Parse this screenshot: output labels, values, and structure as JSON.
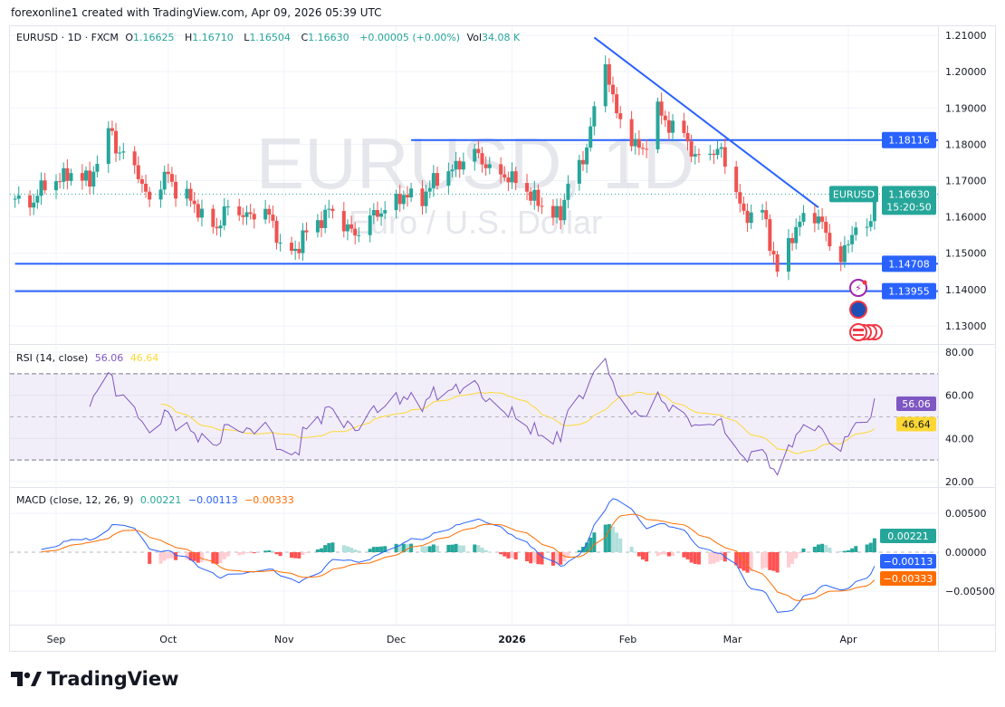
{
  "credit": "forexonline1 created with TradingView.com, Apr 09, 2026 05:39 UTC",
  "header": {
    "symbol": "EURUSD · 1D · FXCM",
    "o_label": "O",
    "o": "1.16625",
    "h_label": "H",
    "h": "1.16710",
    "l_label": "L",
    "l": "1.16504",
    "c_label": "C",
    "c": "1.16630",
    "change": "+0.00005 (+0.00%)",
    "vol_label": "Vol",
    "vol": "34.08 K"
  },
  "watermark": {
    "title": "EURUSD, 1D",
    "subtitle": "Euro / U.S. Dollar"
  },
  "brand": "TradingView",
  "colors": {
    "up": "#26a69a",
    "down": "#ef5350",
    "line": "#2962ff",
    "rsi": "#7e57c2",
    "rsi_ma": "#fdd835",
    "macd": "#2962ff",
    "signal": "#ff6d00",
    "grid": "#f0f3fa"
  },
  "chart_data": [
    {
      "type": "candlestick",
      "symbol": "EURUSD",
      "ylim": [
        1.125,
        1.2125
      ],
      "yticks": [
        "1.21000",
        "1.20000",
        "1.19000",
        "1.18000",
        "1.17000",
        "1.16000",
        "1.15000",
        "1.14000",
        "1.13000"
      ],
      "xticks": [
        [
          "2025-09-01",
          "Sep"
        ],
        [
          "2025-10-01",
          "Oct"
        ],
        [
          "2025-11-01",
          "Nov"
        ],
        [
          "2025-12-01",
          "Dec"
        ],
        [
          "2026-01-01",
          "2026"
        ],
        [
          "2026-02-01",
          "Feb"
        ],
        [
          "2026-03-01",
          "Mar"
        ],
        [
          "2026-04-01",
          "Apr"
        ]
      ],
      "close_path": [
        [
          "2025-08-21",
          1.165
        ],
        [
          "2025-08-25",
          1.163
        ],
        [
          "2025-08-28",
          1.168
        ],
        [
          "2025-09-01",
          1.17
        ],
        [
          "2025-09-05",
          1.172
        ],
        [
          "2025-09-10",
          1.17
        ],
        [
          "2025-09-12",
          1.175
        ],
        [
          "2025-09-16",
          1.185
        ],
        [
          "2025-09-17",
          1.178
        ],
        [
          "2025-09-22",
          1.175
        ],
        [
          "2025-09-24",
          1.168
        ],
        [
          "2025-09-26",
          1.165
        ],
        [
          "2025-10-01",
          1.172
        ],
        [
          "2025-10-03",
          1.167
        ],
        [
          "2025-10-07",
          1.165
        ],
        [
          "2025-10-10",
          1.16
        ],
        [
          "2025-10-14",
          1.157
        ],
        [
          "2025-10-17",
          1.163
        ],
        [
          "2025-10-22",
          1.16
        ],
        [
          "2025-10-27",
          1.162
        ],
        [
          "2025-10-29",
          1.158
        ],
        [
          "2025-10-31",
          1.152
        ],
        [
          "2025-11-04",
          1.15
        ],
        [
          "2025-11-06",
          1.155
        ],
        [
          "2025-11-10",
          1.158
        ],
        [
          "2025-11-13",
          1.162
        ],
        [
          "2025-11-17",
          1.158
        ],
        [
          "2025-11-20",
          1.155
        ],
        [
          "2025-11-24",
          1.16
        ],
        [
          "2025-11-28",
          1.162
        ],
        [
          "2025-12-03",
          1.166
        ],
        [
          "2025-12-08",
          1.165
        ],
        [
          "2025-12-11",
          1.17
        ],
        [
          "2025-12-16",
          1.173
        ],
        [
          "2025-12-22",
          1.178
        ],
        [
          "2025-12-26",
          1.173
        ],
        [
          "2026-01-02",
          1.17
        ],
        [
          "2026-01-05",
          1.167
        ],
        [
          "2026-01-09",
          1.163
        ],
        [
          "2026-01-14",
          1.16
        ],
        [
          "2026-01-16",
          1.17
        ],
        [
          "2026-01-20",
          1.175
        ],
        [
          "2026-01-22",
          1.185
        ],
        [
          "2026-01-26",
          1.202
        ],
        [
          "2026-01-27",
          1.198
        ],
        [
          "2026-01-29",
          1.188
        ],
        [
          "2026-02-03",
          1.18
        ],
        [
          "2026-02-05",
          1.178
        ],
        [
          "2026-02-09",
          1.19
        ],
        [
          "2026-02-11",
          1.186
        ],
        [
          "2026-02-16",
          1.183
        ],
        [
          "2026-02-19",
          1.176
        ],
        [
          "2026-02-23",
          1.178
        ],
        [
          "2026-02-26",
          1.178
        ],
        [
          "2026-03-02",
          1.167
        ],
        [
          "2026-03-04",
          1.16
        ],
        [
          "2026-03-09",
          1.162
        ],
        [
          "2026-03-11",
          1.153
        ],
        [
          "2026-03-13",
          1.145
        ],
        [
          "2026-03-17",
          1.155
        ],
        [
          "2026-03-20",
          1.16
        ],
        [
          "2026-03-24",
          1.16
        ],
        [
          "2026-03-27",
          1.153
        ],
        [
          "2026-03-30",
          1.148
        ],
        [
          "2026-04-03",
          1.158
        ],
        [
          "2026-04-06",
          1.155
        ],
        [
          "2026-04-07",
          1.16
        ],
        [
          "2026-04-08",
          1.1663
        ]
      ],
      "horizontal_lines": [
        {
          "price": 1.18116,
          "label": "1.18116",
          "from": "2025-12-05"
        },
        {
          "price": 1.14708,
          "label": "1.14708",
          "from": "2025-08-21"
        },
        {
          "price": 1.13955,
          "label": "1.13955",
          "from": "2025-08-21"
        }
      ],
      "trendline": [
        [
          "2026-01-23",
          1.2094
        ],
        [
          "2026-03-24",
          1.1626
        ]
      ],
      "last_price": {
        "symbol": "EURUSD",
        "price": "1.16630",
        "countdown": "15:20:50",
        "value": 1.1663
      }
    },
    {
      "type": "line",
      "title": "RSI (14, close)",
      "rsi_value": "56.06",
      "ma_value": "46.64",
      "ylim": [
        20,
        80
      ],
      "bands": [
        70,
        50,
        30
      ],
      "yticks": [
        "80.00",
        "60.00",
        "40.00",
        "20.00"
      ]
    },
    {
      "type": "bar+line",
      "title": "MACD (close, 12, 26, 9)",
      "hist_value": "0.00221",
      "macd_value": "−0.00113",
      "signal_value": "−0.00333",
      "ylim": [
        -0.009,
        0.0075
      ],
      "yticks": [
        "0.00500",
        "0.00000",
        "−0.00500"
      ]
    }
  ]
}
